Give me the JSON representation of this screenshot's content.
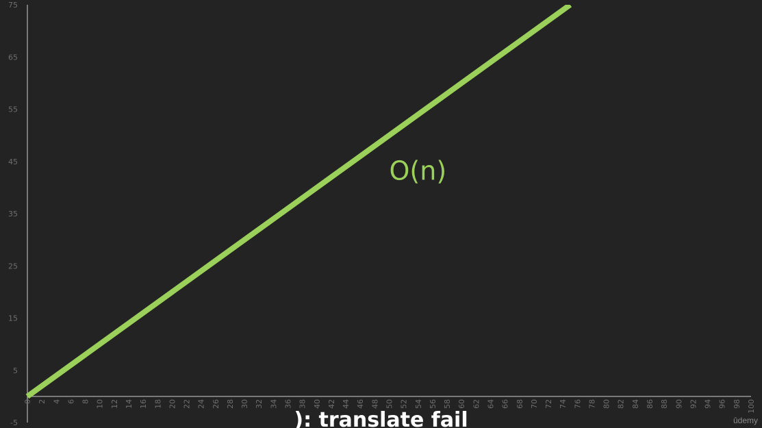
{
  "chart_data": {
    "type": "line",
    "x": [
      0,
      75
    ],
    "series": [
      {
        "name": "O(n)",
        "values": [
          0,
          75
        ]
      }
    ],
    "xlim": [
      0,
      100
    ],
    "ylim": [
      -5,
      75
    ],
    "x_ticks": [
      0,
      2,
      4,
      6,
      8,
      10,
      12,
      14,
      16,
      18,
      20,
      22,
      24,
      26,
      28,
      30,
      32,
      34,
      36,
      38,
      40,
      42,
      44,
      46,
      48,
      50,
      52,
      54,
      56,
      58,
      60,
      62,
      64,
      66,
      68,
      70,
      72,
      74,
      76,
      78,
      80,
      82,
      84,
      86,
      88,
      90,
      92,
      94,
      96,
      98,
      100
    ],
    "y_ticks": [
      -5,
      5,
      15,
      25,
      35,
      45,
      55,
      65,
      75
    ],
    "annotation": "O(n)",
    "grid": false,
    "colors": {
      "background": "#232323",
      "line": "#9bd15a",
      "axis": "#cfcfcf",
      "tick_label": "#6e6e6e"
    }
  },
  "subtitle": "): translate fail",
  "watermark": "ûdemy"
}
